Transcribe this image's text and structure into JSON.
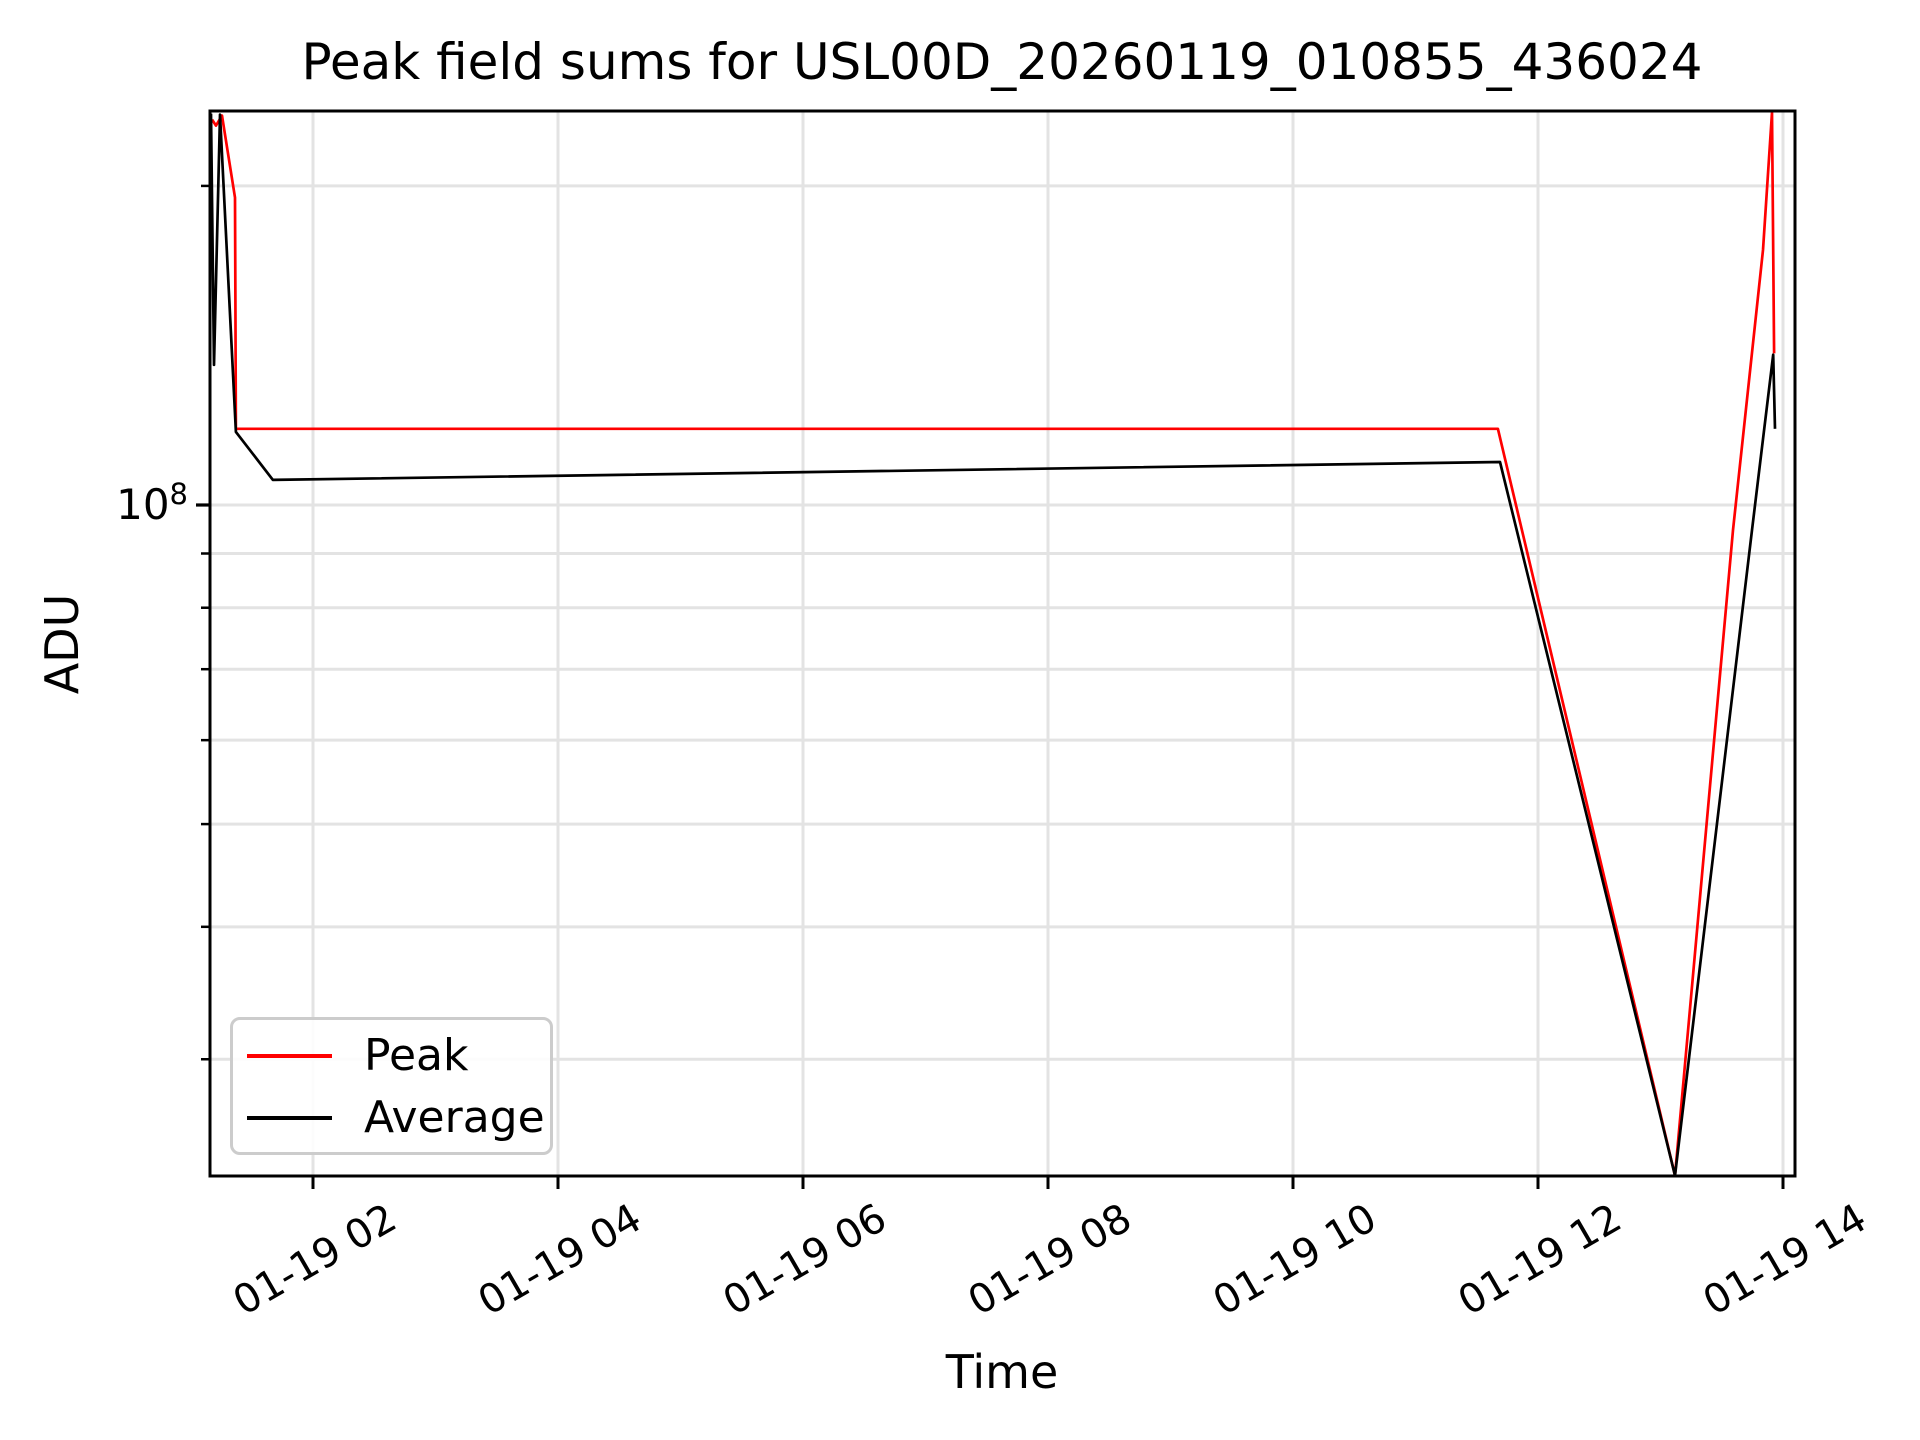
{
  "figure": {
    "title": "Peak field sums for USL00D_20260119_010855_436024",
    "background": "#ffffff"
  },
  "axes": {
    "xlabel": "Time",
    "ylabel": "ADU",
    "y_scale": "log",
    "y_major_tick": {
      "base": "10",
      "exponent": "8"
    },
    "x_ticks": [
      {
        "hour": 2,
        "label": "01-19 02"
      },
      {
        "hour": 4,
        "label": "01-19 04"
      },
      {
        "hour": 6,
        "label": "01-19 06"
      },
      {
        "hour": 8,
        "label": "01-19 08"
      },
      {
        "hour": 10,
        "label": "01-19 10"
      },
      {
        "hour": 12,
        "label": "01-19 12"
      },
      {
        "hour": 14,
        "label": "01-19 14"
      }
    ]
  },
  "legend": {
    "entries": [
      {
        "label": "Peak",
        "color": "#ff0000"
      },
      {
        "label": "Average",
        "color": "#000000"
      }
    ]
  },
  "colors": {
    "grid": "#e3e3e3",
    "spine": "#000000",
    "legend_border": "#cccccc"
  },
  "chart_data": {
    "type": "line",
    "title": "Peak field sums for USL00D_20260119_010855_436024",
    "xlabel": "Time",
    "ylabel": "ADU",
    "yscale": "log",
    "grid": true,
    "legend_position": "lower left",
    "x_unit": "hours since 2026-01-19 00:00",
    "xlim_hours": [
      1.159,
      14.098
    ],
    "ylim": [
      23300000,
      235000000
    ],
    "y_major_ticks": [
      100000000
    ],
    "y_minor_ticks": [
      200000000,
      90000000,
      80000000,
      70000000,
      60000000,
      50000000,
      40000000,
      30000000
    ],
    "x_major_tick_hours": [
      2,
      4,
      6,
      8,
      10,
      12,
      14
    ],
    "series": [
      {
        "name": "Peak",
        "color": "#ff0000",
        "points": [
          [
            1.176,
            231000000
          ],
          [
            1.208,
            228000000
          ],
          [
            1.257,
            233000000
          ],
          [
            1.363,
            195000000
          ],
          [
            1.371,
            118000000
          ],
          [
            11.673,
            118000000
          ],
          [
            13.118,
            23300000
          ],
          [
            13.592,
            94700000
          ],
          [
            13.837,
            174000000
          ],
          [
            13.91,
            234500000
          ],
          [
            13.927,
            139000000
          ]
        ]
      },
      {
        "name": "Average",
        "color": "#000000",
        "points": [
          [
            1.167,
            234000000
          ],
          [
            1.192,
            135600000
          ],
          [
            1.241,
            233500000
          ],
          [
            1.371,
            117200000
          ],
          [
            1.673,
            105600000
          ],
          [
            11.69,
            109800000
          ],
          [
            13.118,
            23300000
          ],
          [
            13.747,
            94700000
          ],
          [
            13.92,
            138600000
          ],
          [
            13.935,
            118000000
          ]
        ]
      }
    ]
  }
}
